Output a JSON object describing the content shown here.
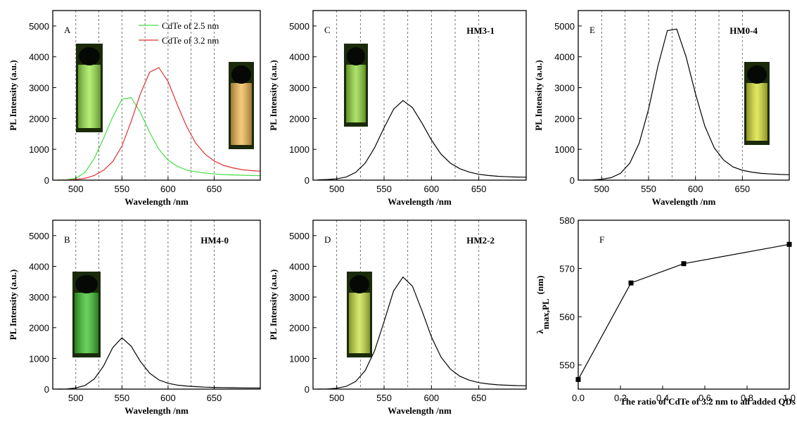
{
  "chart_data": [
    {
      "type": "line",
      "panel_label": "A",
      "x_label": "Wavelength /nm",
      "y_label": "PL Intensity (a.u.)",
      "legend": true,
      "x": [
        480,
        490,
        500,
        510,
        520,
        530,
        540,
        550,
        560,
        570,
        580,
        590,
        600,
        610,
        620,
        630,
        640,
        650,
        660,
        670,
        680,
        690,
        700
      ],
      "series": [
        {
          "name": "CdTe of 2.5 nm",
          "color": "#44dd44",
          "values": [
            0,
            10,
            60,
            250,
            700,
            1350,
            2050,
            2620,
            2680,
            2200,
            1550,
            1000,
            650,
            450,
            330,
            270,
            230,
            200,
            180,
            170,
            160,
            150,
            145
          ]
        },
        {
          "name": "CdTe of 3.2 nm",
          "color": "#e03030",
          "values": [
            0,
            5,
            20,
            60,
            150,
            320,
            600,
            1100,
            1900,
            2800,
            3500,
            3650,
            3200,
            2450,
            1750,
            1200,
            850,
            620,
            480,
            400,
            340,
            310,
            290
          ]
        }
      ],
      "xlim": [
        475,
        700
      ],
      "xticks": [
        500,
        550,
        600,
        650
      ],
      "xgrid": [
        500,
        525,
        550,
        575,
        600,
        625,
        650
      ],
      "ylim": [
        0,
        5500
      ],
      "yticks": [
        0,
        1000,
        2000,
        3000,
        4000,
        5000
      ]
    },
    {
      "type": "line",
      "panel_label": "B",
      "x_label": "Wavelength /nm",
      "y_label": "PL Intensity (a.u.)",
      "legend": false,
      "x": [
        480,
        490,
        500,
        510,
        520,
        530,
        540,
        550,
        560,
        570,
        580,
        590,
        600,
        610,
        620,
        630,
        640,
        650,
        660,
        670,
        680,
        690,
        700
      ],
      "series": [
        {
          "name": "HM4-0",
          "color": "#000000",
          "values": [
            0,
            5,
            40,
            120,
            330,
            750,
            1350,
            1670,
            1400,
            900,
            520,
            300,
            190,
            130,
            100,
            80,
            65,
            55,
            50,
            45,
            42,
            40,
            38
          ]
        }
      ],
      "xlim": [
        475,
        700
      ],
      "xticks": [
        500,
        550,
        600,
        650
      ],
      "xgrid": [
        500,
        525,
        550,
        575,
        600,
        625,
        650
      ],
      "ylim": [
        0,
        5500
      ],
      "yticks": [
        0,
        1000,
        2000,
        3000,
        4000,
        5000
      ]
    },
    {
      "type": "line",
      "panel_label": "C",
      "x_label": "Wavelength /nm",
      "y_label": "PL Intensity (a.u.)",
      "legend": false,
      "x": [
        480,
        490,
        500,
        510,
        520,
        530,
        540,
        550,
        560,
        570,
        580,
        590,
        600,
        610,
        620,
        630,
        640,
        650,
        660,
        670,
        680,
        690,
        700
      ],
      "series": [
        {
          "name": "HM3-1",
          "color": "#000000",
          "values": [
            10,
            20,
            40,
            100,
            250,
            550,
            1050,
            1700,
            2300,
            2580,
            2350,
            1850,
            1300,
            850,
            550,
            370,
            260,
            190,
            150,
            125,
            110,
            100,
            95
          ]
        }
      ],
      "xlim": [
        475,
        700
      ],
      "xticks": [
        500,
        550,
        600,
        650
      ],
      "xgrid": [
        500,
        525,
        550,
        575,
        600,
        625,
        650
      ],
      "ylim": [
        0,
        5500
      ],
      "yticks": [
        0,
        1000,
        2000,
        3000,
        4000,
        5000
      ]
    },
    {
      "type": "line",
      "panel_label": "D",
      "x_label": "Wavelength /nm",
      "y_label": "PL Intensity (a.u.)",
      "legend": false,
      "x": [
        480,
        490,
        500,
        510,
        520,
        530,
        540,
        550,
        560,
        570,
        580,
        590,
        600,
        610,
        620,
        630,
        640,
        650,
        660,
        670,
        680,
        690,
        700
      ],
      "series": [
        {
          "name": "HM2-2",
          "color": "#000000",
          "values": [
            0,
            5,
            30,
            90,
            250,
            600,
            1250,
            2200,
            3200,
            3650,
            3350,
            2550,
            1700,
            1050,
            650,
            420,
            290,
            210,
            170,
            140,
            125,
            115,
            110
          ]
        }
      ],
      "xlim": [
        475,
        700
      ],
      "xticks": [
        500,
        550,
        600,
        650
      ],
      "xgrid": [
        500,
        525,
        550,
        575,
        600,
        625,
        650
      ],
      "ylim": [
        0,
        5500
      ],
      "yticks": [
        0,
        1000,
        2000,
        3000,
        4000,
        5000
      ]
    },
    {
      "type": "line",
      "panel_label": "E",
      "x_label": "Wavelength /nm",
      "y_label": "PL Intensity (a.u.)",
      "legend": false,
      "x": [
        480,
        490,
        500,
        510,
        520,
        530,
        540,
        550,
        560,
        570,
        580,
        590,
        600,
        610,
        620,
        630,
        640,
        650,
        660,
        670,
        680,
        690,
        700
      ],
      "series": [
        {
          "name": "HM0-4",
          "color": "#000000",
          "values": [
            0,
            5,
            30,
            80,
            220,
            550,
            1200,
            2300,
            3700,
            4850,
            4900,
            4000,
            2800,
            1750,
            1050,
            650,
            430,
            320,
            260,
            220,
            200,
            185,
            175
          ]
        }
      ],
      "xlim": [
        475,
        700
      ],
      "xticks": [
        500,
        550,
        600,
        650
      ],
      "xgrid": [
        500,
        525,
        550,
        575,
        600,
        625,
        650
      ],
      "ylim": [
        0,
        5500
      ],
      "yticks": [
        0,
        1000,
        2000,
        3000,
        4000,
        5000
      ]
    },
    {
      "type": "line",
      "panel_label": "F",
      "markers": true,
      "legend": false,
      "x_label": "The ratio of  CdTe of 3.2 nm to all added QDs",
      "y_label": {
        "symbol": "λ",
        "subscript": "max,PL",
        "unit": "(nm)"
      },
      "x": [
        0,
        0.25,
        0.5,
        1
      ],
      "series": [
        {
          "color": "#000000",
          "values": [
            547,
            567,
            571,
            575
          ]
        }
      ],
      "xlim": [
        0,
        1
      ],
      "xticks": [
        {
          "value": 0,
          "label": "0.0"
        },
        0.2,
        0.4,
        0.6,
        0.8,
        {
          "value": 1,
          "label": "1.0"
        }
      ],
      "ylim": [
        545,
        580
      ],
      "yticks": [
        550,
        560,
        570,
        580
      ]
    }
  ]
}
